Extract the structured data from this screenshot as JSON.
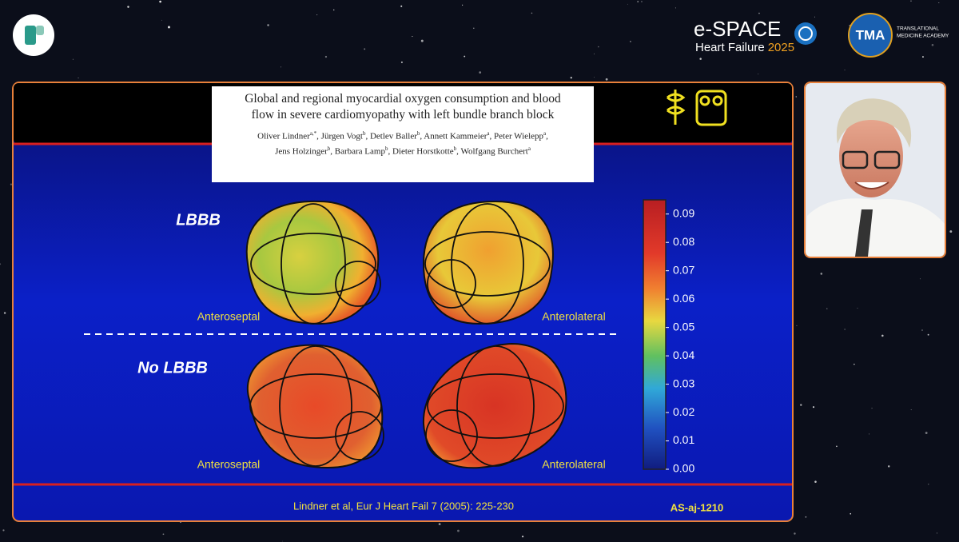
{
  "header": {
    "brand": {
      "name": "e-SPACE",
      "subtitle": "Heart Failure",
      "year": "2025"
    },
    "academy": {
      "abbr": "TMA",
      "name_line1": "TRANSLATIONAL",
      "name_line2": "MEDICINE ACADEMY"
    }
  },
  "slide": {
    "paper": {
      "title": "Global and regional myocardial oxygen consumption and blood flow in severe cardiomyopathy with left bundle branch block",
      "authors": [
        [
          {
            "name": "Oliver Lindner",
            "sup": "a,*",
            "sep": ","
          },
          {
            "name": "Jürgen Vogt",
            "sup": "b",
            "sep": ","
          },
          {
            "name": "Detlev Baller",
            "sup": "b",
            "sep": ","
          },
          {
            "name": "Annett Kammeier",
            "sup": "a",
            "sep": ","
          },
          {
            "name": "Peter Wielepp",
            "sup": "a",
            "sep": ","
          }
        ],
        [
          {
            "name": "Jens Holzinger",
            "sup": "b",
            "sep": ","
          },
          {
            "name": "Barbara Lamp",
            "sup": "b",
            "sep": ","
          },
          {
            "name": "Dieter Horstkotte",
            "sup": "b",
            "sep": ","
          },
          {
            "name": "Wolfgang Burchert",
            "sup": "a"
          }
        ]
      ]
    },
    "groups": [
      {
        "label": "LBBB",
        "views": [
          "Anteroseptal",
          "Anterolateral"
        ]
      },
      {
        "label": "No LBBB",
        "views": [
          "Anteroseptal",
          "Anterolateral"
        ]
      }
    ],
    "colorbar": {
      "lim": [
        0,
        0.095
      ],
      "ticks": [
        {
          "value": 0.09,
          "label": "0.09"
        },
        {
          "value": 0.08,
          "label": "0.08"
        },
        {
          "value": 0.07,
          "label": "0.07"
        },
        {
          "value": 0.06,
          "label": "0.06"
        },
        {
          "value": 0.05,
          "label": "0.05"
        },
        {
          "value": 0.04,
          "label": "0.04"
        },
        {
          "value": 0.03,
          "label": "0.03"
        },
        {
          "value": 0.02,
          "label": "0.02"
        },
        {
          "value": 0.01,
          "label": "0.01"
        },
        {
          "value": 0,
          "label": "0.00"
        }
      ]
    },
    "citation": "Lindner et al, Eur J Heart Fail 7 (2005): 225-230",
    "code": "AS-aj-1210"
  }
}
